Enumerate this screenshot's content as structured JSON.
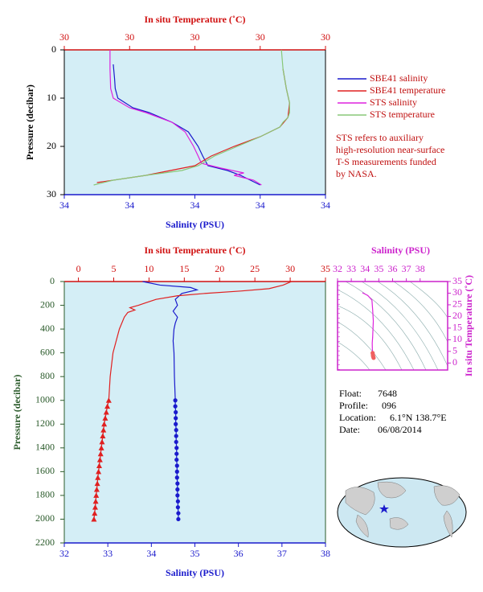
{
  "chart_data": [
    {
      "type": "profile",
      "x2_label": "In situ Temperature (˚C)",
      "x_label": "Salinity (PSU)",
      "y_label": "Pressure (decibar)",
      "x2lim": [
        29.6,
        30.4
      ],
      "x2ticks": [
        {
          "value": 29.6,
          "label": "30"
        },
        {
          "value": 29.8,
          "label": "30"
        },
        30,
        {
          "value": 30.2,
          "label": "30"
        },
        {
          "value": 30.4,
          "label": "30"
        }
      ],
      "xlim": [
        33.8,
        34.2
      ],
      "xticks": [
        {
          "value": 33.8,
          "label": "34"
        },
        {
          "value": 33.9,
          "label": "34"
        },
        34,
        {
          "value": 34.1,
          "label": "34"
        },
        {
          "value": 34.2,
          "label": "34"
        }
      ],
      "ylim": [
        0,
        30
      ],
      "yticks": [
        0,
        10,
        20,
        30
      ],
      "y_inverted": true,
      "x_color": "#1a1acc",
      "x2_color": "#d01010",
      "y_color": "#000000",
      "background": "#d4eef6",
      "legend": "right",
      "series": [
        {
          "name": "SBE41 salinity",
          "color": "#1a1acc",
          "axis": "x",
          "pressure": [
            3,
            6,
            8,
            10,
            12,
            13,
            15,
            17,
            20,
            22,
            24,
            25,
            26,
            27,
            28
          ],
          "values": [
            33.875,
            33.877,
            33.878,
            33.882,
            33.905,
            33.93,
            33.965,
            33.99,
            34.005,
            34.012,
            34.02,
            34.05,
            34.07,
            34.085,
            34.1
          ]
        },
        {
          "name": "SBE41 temperature",
          "color": "#e02020",
          "axis": "x2",
          "pressure": [
            4,
            8,
            11,
            14,
            16,
            18,
            20,
            22,
            24,
            26,
            27.5
          ],
          "values": [
            30.27,
            30.28,
            30.29,
            30.285,
            30.26,
            30.2,
            30.12,
            30.05,
            30.0,
            29.85,
            29.7
          ]
        },
        {
          "name": "STS salinity",
          "color": "#dd22dd",
          "axis": "x",
          "pressure": [
            0,
            4,
            8,
            10,
            12,
            13,
            15,
            17,
            20,
            22,
            23.5,
            24.5,
            25.5,
            26,
            27,
            28
          ],
          "values": [
            33.87,
            33.87,
            33.871,
            33.875,
            33.9,
            33.925,
            33.965,
            33.985,
            33.998,
            34.005,
            34.01,
            34.04,
            34.075,
            34.06,
            34.09,
            34.102
          ]
        },
        {
          "name": "STS temperature",
          "color": "#88c878",
          "axis": "x2",
          "pressure": [
            0,
            4,
            8,
            11,
            13,
            14,
            15,
            16,
            18,
            20,
            22,
            24,
            25,
            26,
            27,
            28
          ],
          "values": [
            30.265,
            30.27,
            30.28,
            30.29,
            30.29,
            30.285,
            30.27,
            30.26,
            30.2,
            30.13,
            30.06,
            30.01,
            29.96,
            29.85,
            29.75,
            29.69
          ]
        }
      ],
      "note": [
        "STS refers to auxiliary",
        "high-resolution near-surface",
        "T-S measurements funded",
        "by NASA."
      ]
    },
    {
      "type": "profile",
      "x2_label": "In situ Temperature (˚C)",
      "x_label": "Salinity (PSU)",
      "y_label": "Pressure (decibar)",
      "x2lim": [
        -2,
        35
      ],
      "x2ticks": [
        0,
        5,
        10,
        15,
        20,
        25,
        30,
        35
      ],
      "xlim": [
        32,
        38
      ],
      "xticks": [
        32,
        33,
        34,
        35,
        36,
        37,
        38
      ],
      "ylim": [
        0,
        2200
      ],
      "yticks": [
        0,
        200,
        400,
        600,
        800,
        1000,
        1200,
        1400,
        1600,
        1800,
        2000,
        2200
      ],
      "y_inverted": true,
      "x_color": "#1a1acc",
      "x2_color": "#d01010",
      "y_color": "#2a5a2a",
      "background": "#d4eef6",
      "series": [
        {
          "color": "#1a1acc",
          "axis": "x",
          "pressure": [
            0,
            30,
            50,
            70,
            100,
            150,
            200,
            250,
            300,
            350,
            400,
            500,
            600,
            800,
            1000
          ],
          "values": [
            33.8,
            34.2,
            34.9,
            35.05,
            34.7,
            34.55,
            34.6,
            34.5,
            34.6,
            34.55,
            34.52,
            34.5,
            34.52,
            34.53,
            34.55
          ]
        },
        {
          "color": "#1a1acc",
          "axis": "x",
          "marker": "circle",
          "pressure": [
            1000,
            1050,
            1100,
            1150,
            1200,
            1250,
            1300,
            1350,
            1400,
            1450,
            1500,
            1550,
            1600,
            1650,
            1700,
            1750,
            1800,
            1850,
            1900,
            1950,
            2000
          ],
          "values": [
            34.55,
            34.55,
            34.56,
            34.56,
            34.56,
            34.57,
            34.57,
            34.57,
            34.58,
            34.58,
            34.58,
            34.59,
            34.59,
            34.59,
            34.6,
            34.6,
            34.6,
            34.61,
            34.61,
            34.62,
            34.62
          ]
        },
        {
          "color": "#e02020",
          "axis": "x2",
          "pressure": [
            0,
            10,
            30,
            60,
            80,
            100,
            120,
            150,
            180,
            200,
            220,
            240,
            260,
            300,
            400,
            600,
            800,
            1000
          ],
          "values": [
            30.2,
            29.8,
            29.0,
            27.0,
            23.0,
            18.0,
            14.0,
            11.0,
            9.5,
            8.5,
            7.3,
            8.0,
            7.0,
            6.5,
            5.8,
            4.9,
            4.5,
            4.3
          ]
        },
        {
          "color": "#e02020",
          "axis": "x2",
          "marker": "triangle",
          "pressure": [
            1000,
            1050,
            1100,
            1150,
            1200,
            1250,
            1300,
            1350,
            1400,
            1450,
            1500,
            1550,
            1600,
            1650,
            1700,
            1750,
            1800,
            1850,
            1900,
            1950,
            2000
          ],
          "values": [
            4.3,
            4.1,
            3.95,
            3.8,
            3.65,
            3.55,
            3.45,
            3.35,
            3.25,
            3.15,
            3.05,
            2.95,
            2.85,
            2.75,
            2.68,
            2.6,
            2.52,
            2.45,
            2.38,
            2.3,
            2.2
          ]
        }
      ]
    },
    {
      "type": "ts",
      "x_label": "Salinity (PSU)",
      "y_label": "In situ Temperature (˚C)",
      "xlim": [
        32,
        40
      ],
      "xticks": [
        32,
        33,
        34,
        35,
        36,
        37,
        38
      ],
      "ylim": [
        -3,
        35
      ],
      "yticks": [
        0,
        5,
        10,
        15,
        20,
        25,
        30,
        35
      ],
      "x_color": "#cc22cc",
      "y_color": "#cc22cc",
      "background": "#ffffff",
      "series": [
        {
          "color": "#dd22dd",
          "x": [
            33.8,
            34.2,
            34.5,
            34.55,
            34.6,
            34.55,
            34.52,
            34.53,
            34.55,
            34.62
          ],
          "values": [
            30.2,
            29.0,
            27,
            23,
            18,
            11,
            8.5,
            6.0,
            4.3,
            2.2
          ]
        },
        {
          "color": "#f06060",
          "marker": "circle",
          "line": false,
          "x": [
            34.55,
            34.57,
            34.58,
            34.6,
            34.62
          ],
          "values": [
            4.3,
            3.6,
            3.0,
            2.6,
            2.2
          ]
        }
      ]
    }
  ],
  "info": [
    {
      "label": "Float:",
      "value": "7648"
    },
    {
      "label": "Profile:",
      "value": "096"
    },
    {
      "label": "Location:",
      "value": "6.1°N  138.7°E"
    },
    {
      "label": "Date:",
      "value": "06/08/2014"
    }
  ]
}
